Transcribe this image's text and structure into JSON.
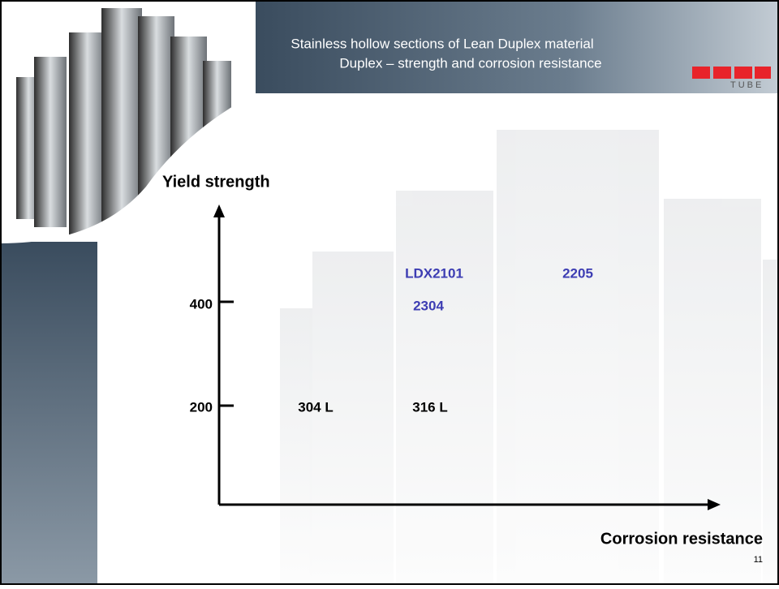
{
  "header": {
    "title": "Stainless hollow sections of Lean Duplex material",
    "subtitle": "Duplex – strength and corrosion resistance",
    "logo_text": "TUBE"
  },
  "diagram": {
    "y_axis_label": "Yield strength",
    "x_axis_label": "Corrosion resistance",
    "y_ticks": [
      400,
      200
    ],
    "grades": [
      "LDX2101",
      "2205",
      "2304",
      "304 L",
      "316 L"
    ]
  },
  "footer": {
    "page_number": 11
  }
}
